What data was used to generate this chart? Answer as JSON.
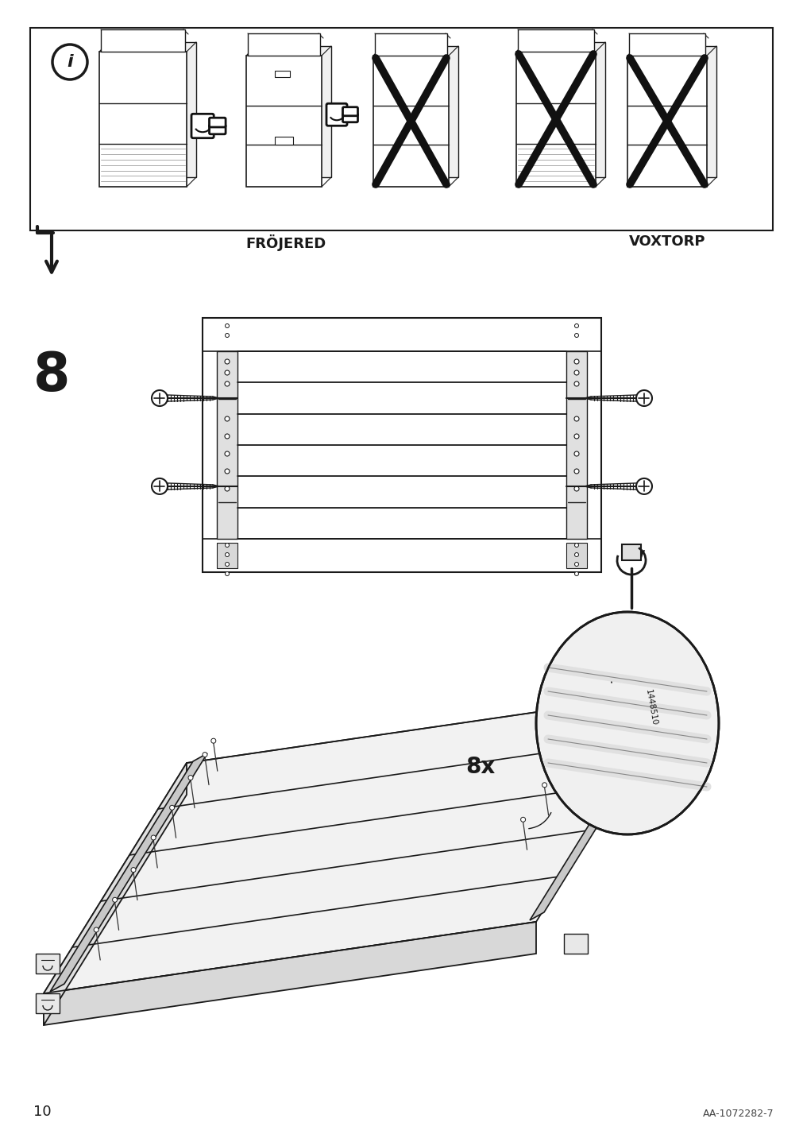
{
  "page_num": "10",
  "doc_code": "AA-1072282-7",
  "step_num": "8",
  "screw_count": "8x",
  "screw_part": "1448510",
  "label_frojered": "FRÖJERED",
  "label_voxtorp": "VOXTORP",
  "bg_color": "#ffffff",
  "line_color": "#1a1a1a"
}
